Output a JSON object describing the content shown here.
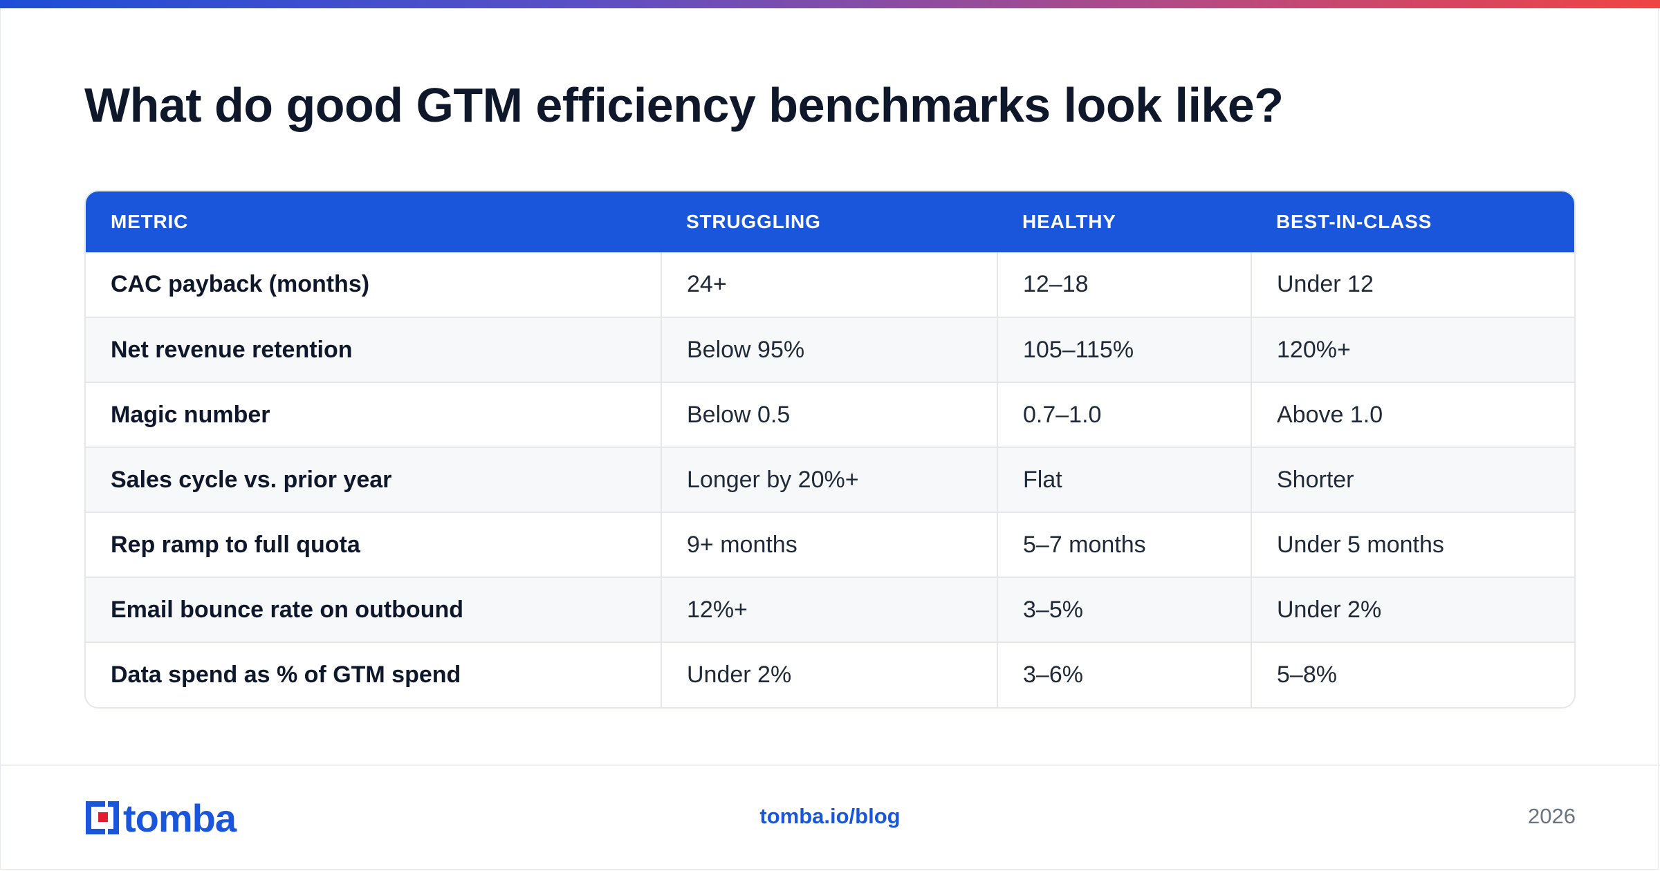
{
  "title": "What do good GTM efficiency benchmarks look like?",
  "table": {
    "headers": [
      "METRIC",
      "STRUGGLING",
      "HEALTHY",
      "BEST-IN-CLASS"
    ],
    "rows": [
      [
        "CAC payback (months)",
        "24+",
        "12–18",
        "Under 12"
      ],
      [
        "Net revenue retention",
        "Below 95%",
        "105–115%",
        "120%+"
      ],
      [
        "Magic number",
        "Below 0.5",
        "0.7–1.0",
        "Above 1.0"
      ],
      [
        "Sales cycle vs. prior year",
        "Longer by 20%+",
        "Flat",
        "Shorter"
      ],
      [
        "Rep ramp to full quota",
        "9+ months",
        "5–7 months",
        "Under 5 months"
      ],
      [
        "Email bounce rate on outbound",
        "12%+",
        "3–5%",
        "Under 2%"
      ],
      [
        "Data spend as % of GTM spend",
        "Under 2%",
        "3–6%",
        "5–8%"
      ]
    ]
  },
  "footer": {
    "logo_text": "tomba",
    "link": "tomba.io/blog",
    "year": "2026"
  },
  "colors": {
    "accent": "#1a56db",
    "logo_red": "#e11d2e",
    "title": "#0f172a"
  }
}
